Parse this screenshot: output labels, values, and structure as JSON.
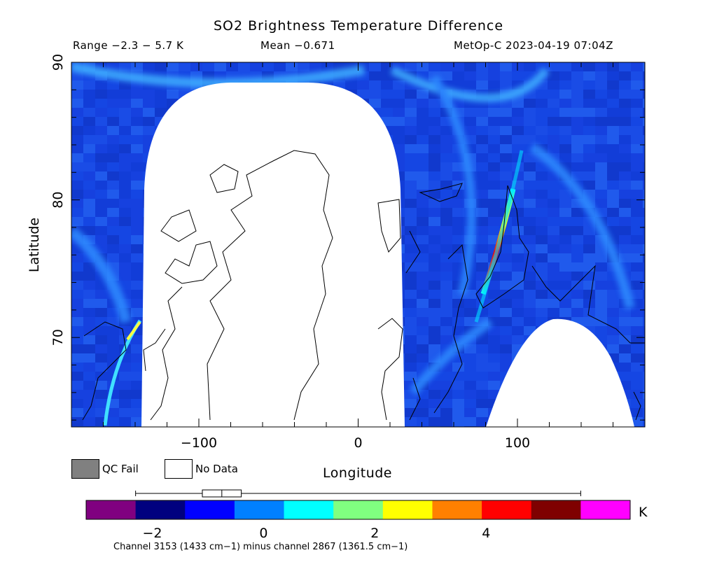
{
  "chart_data": {
    "type": "heatmap",
    "title": "SO2 Brightness Temperature Difference",
    "range_text": "Range −2.3 − 5.7 K",
    "mean_text": "Mean −0.671",
    "satellite_text": "MetOp-C 2023-04-19 07:04Z",
    "xlabel": "Longitude",
    "ylabel": "Latitude",
    "xlim": [
      -180,
      180
    ],
    "ylim": [
      63.5,
      90
    ],
    "x_ticks": [
      -100,
      0,
      100
    ],
    "y_ticks": [
      70,
      80,
      90
    ],
    "colorbar": {
      "unit": "K",
      "ticks": [
        -2,
        0,
        2,
        4
      ],
      "range": [
        -2.3,
        5.7
      ],
      "colors": [
        "#800080",
        "#00007f",
        "#0000ff",
        "#0080ff",
        "#00ffff",
        "#80ff80",
        "#ffff00",
        "#ff8000",
        "#ff0000",
        "#7f0000",
        "#ff00ff"
      ],
      "boxplot": {
        "min": -2.3,
        "q1": -1.1,
        "median": -0.75,
        "q3": -0.4,
        "max": 5.7
      }
    },
    "features": [
      {
        "name": "elevated_band_east",
        "lat": [
          71,
          81
        ],
        "lon": [
          80,
          100
        ],
        "max_value": 5.0
      },
      {
        "name": "elevated_band_west",
        "lat": [
          64,
          71
        ],
        "lon": [
          -160,
          -140
        ],
        "max_value": 2.5
      }
    ],
    "background_value": -1.0
  },
  "legend": {
    "qc_fail_label": "QC Fail",
    "qc_fail_color": "#808080",
    "no_data_label": "No Data",
    "no_data_color": "#ffffff"
  },
  "footnote": "Channel 3153 (1433 cm−1) minus channel 2867 (1361.5 cm−1)"
}
